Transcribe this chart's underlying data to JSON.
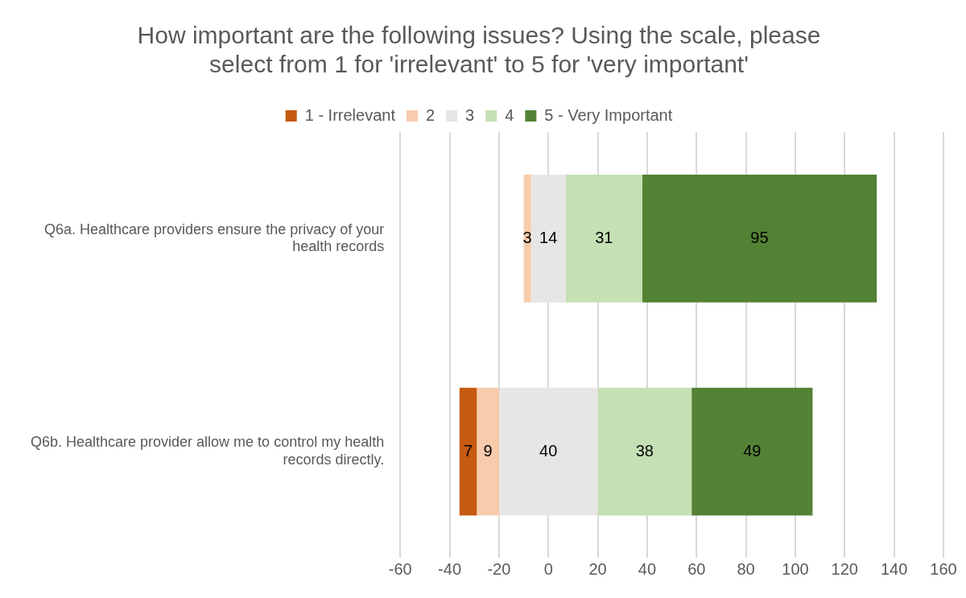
{
  "chart_data": {
    "type": "bar",
    "orientation": "horizontal",
    "title": "How important are the following issues? Using the scale, please select from 1 for 'irrelevant' to 5 for 'very important'",
    "categories": [
      "Q6a. Healthcare providers ensure the privacy of your health records",
      "Q6b. Healthcare provider allow me to control my health records directly."
    ],
    "series": [
      {
        "name": "1 - Irrelevant",
        "color": "#c55a11",
        "values": [
          null,
          7
        ],
        "base": [
          null,
          -36
        ]
      },
      {
        "name": "2",
        "color": "#f8cbad",
        "values": [
          3,
          9
        ],
        "base": [
          -10,
          -29
        ]
      },
      {
        "name": "3",
        "color": "#e7e6e6",
        "values": [
          14,
          40
        ],
        "base": [
          -7,
          -20
        ]
      },
      {
        "name": "4",
        "color": "#c5e0b4",
        "values": [
          31,
          38
        ],
        "base": [
          7,
          20
        ]
      },
      {
        "name": "5 - Very Important",
        "color": "#548235",
        "values": [
          95,
          49
        ],
        "base": [
          38,
          58
        ]
      }
    ],
    "xlim": [
      -60,
      160
    ],
    "xticks": [
      -60,
      -40,
      -20,
      0,
      20,
      40,
      60,
      80,
      100,
      120,
      140,
      160
    ],
    "grid": "x",
    "legend": "top",
    "data_labels": true
  }
}
